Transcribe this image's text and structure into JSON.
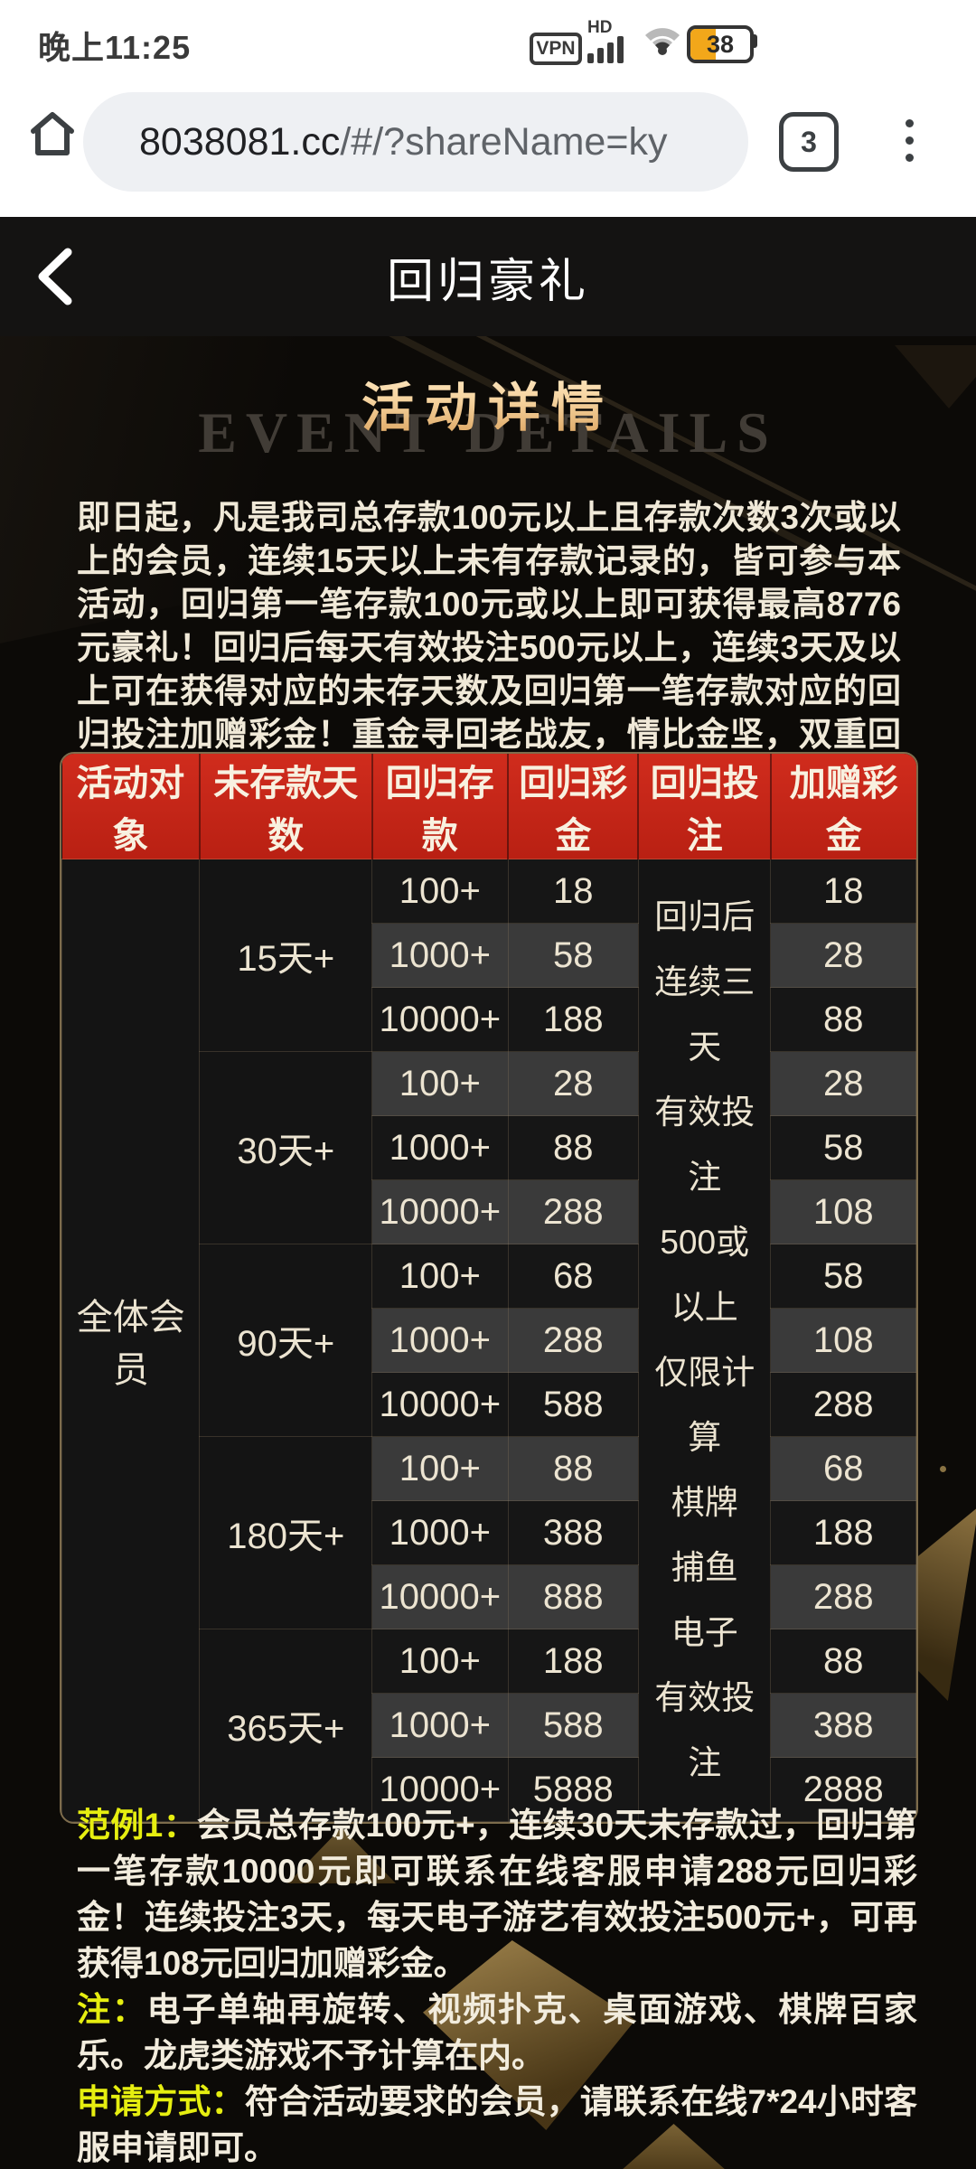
{
  "status_bar": {
    "time": "晚上11:25",
    "vpn_label": "VPN",
    "hd_label": "HD",
    "battery_percent": "38"
  },
  "browser": {
    "url_host": "8038081.cc",
    "url_path": "/#/?shareName=ky",
    "tab_count": "3"
  },
  "app_header": {
    "title": "回归豪礼"
  },
  "event": {
    "title": "活动详情",
    "watermark": "EVENT DETAILS",
    "description": "即日起，凡是我司总存款100元以上且存款次数3次或以上的会员，连续15天以上未有存款记录的，皆可参与本活动，回归第一笔存款100元或以上即可获得最高8776元豪礼！回归后每天有效投注500元以上，连续3天及以上可在获得对应的未存天数及回归第一笔存款对应的回归投注加赠彩金！重金寻回老战友，情比金坚，双重回馈！"
  },
  "table": {
    "headers": [
      "活动对象",
      "未存款天数",
      "回归存款",
      "回归彩金",
      "回归投注",
      "加赠彩金"
    ],
    "audience": "全体会员",
    "bet_requirement_lines": [
      "回归后",
      "连续三天",
      "有效投注",
      "500或",
      "以上",
      "仅限计算",
      "棋牌",
      "捕鱼",
      "电子",
      "有效投注"
    ],
    "groups": [
      {
        "days": "15天+",
        "rows": [
          [
            "100+",
            "18",
            "18"
          ],
          [
            "1000+",
            "58",
            "28"
          ],
          [
            "10000+",
            "188",
            "88"
          ]
        ]
      },
      {
        "days": "30天+",
        "rows": [
          [
            "100+",
            "28",
            "28"
          ],
          [
            "1000+",
            "88",
            "58"
          ],
          [
            "10000+",
            "288",
            "108"
          ]
        ]
      },
      {
        "days": "90天+",
        "rows": [
          [
            "100+",
            "68",
            "58"
          ],
          [
            "1000+",
            "288",
            "108"
          ],
          [
            "10000+",
            "588",
            "288"
          ]
        ]
      },
      {
        "days": "180天+",
        "rows": [
          [
            "100+",
            "88",
            "68"
          ],
          [
            "1000+",
            "388",
            "188"
          ],
          [
            "10000+",
            "888",
            "288"
          ]
        ]
      },
      {
        "days": "365天+",
        "rows": [
          [
            "100+",
            "188",
            "88"
          ],
          [
            "1000+",
            "588",
            "388"
          ],
          [
            "10000+",
            "5888",
            "2888"
          ]
        ]
      }
    ]
  },
  "notes": [
    {
      "label": "范例1：",
      "text": "会员总存款100元+，连续30天未存款过，回归第一笔存款10000元即可联系在线客服申请288元回归彩金！连续投注3天，每天电子游艺有效投注500元+，可再获得108元回归加赠彩金。"
    },
    {
      "label": "注：",
      "text": "电子单轴再旋转、视频扑克、桌面游戏、棋牌百家乐。龙虎类游戏不予计算在内。"
    },
    {
      "label": "申请方式：",
      "text": "符合活动要求的会员，请联系在线7*24小时客服申请即可。"
    }
  ],
  "icons": {
    "home": "house-outline",
    "wifi": "wifi-arcs",
    "signal": "four-bars-ascending",
    "vpn": "vpn-rounded-badge",
    "battery": "battery-with-percent",
    "tabs": "rounded-square-with-count",
    "menu": "vertical-ellipsis",
    "back": "chevron-left"
  },
  "colors": {
    "header_red": "#c9291b",
    "gold_title_top": "#ffeccb",
    "gold_title_bottom": "#daa15c",
    "note_yellow": "#e6ee10",
    "row_dark": "#161616",
    "row_light": "#3a3a3a",
    "battery_orange": "#f2a71a",
    "body_text": "#f0e9d8",
    "table_border_gold": "#7d6c4c"
  }
}
